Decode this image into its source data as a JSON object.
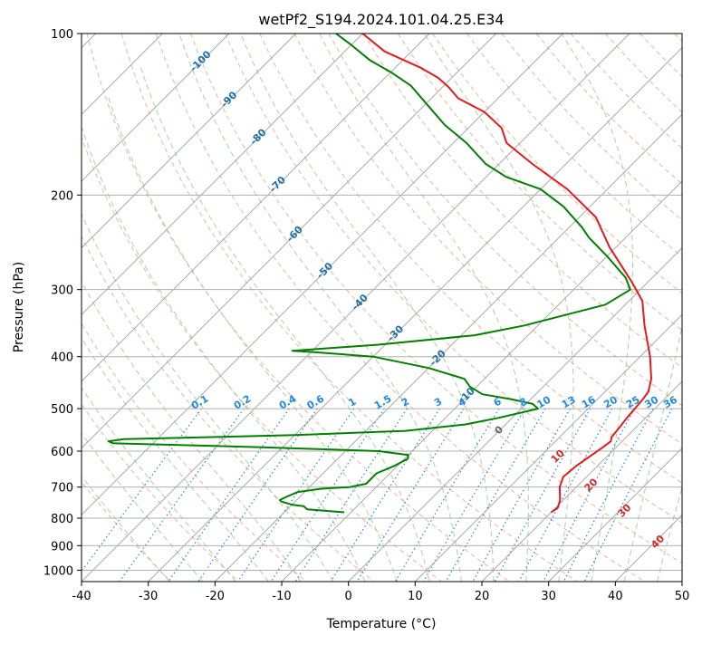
{
  "chart_data": {
    "type": "line",
    "chart_kind": "skew-t log-p diagram",
    "title": "wetPf2_S194.2024.101.04.25.E34",
    "xlabel": "Temperature (°C)",
    "ylabel": "Pressure (hPa)",
    "xlim": [
      -40,
      50
    ],
    "ylim": [
      1050,
      100
    ],
    "y_scale": "log",
    "x_ticks": [
      -40,
      -30,
      -20,
      -10,
      0,
      10,
      20,
      30,
      40,
      50
    ],
    "y_ticks": [
      100,
      200,
      300,
      400,
      500,
      600,
      700,
      800,
      900,
      1000
    ],
    "grid": true,
    "legend": "none",
    "skew_degrees": 45,
    "colors": {
      "temperature": "#e41a1c",
      "dewpoint": "#008000",
      "isotherm_grid": "#a0a0a0",
      "dry_adiabat": "#f4a582",
      "moist_adiabat": "#9ccf9c",
      "mixing_ratio": "#1e88e5",
      "isotherm_label": "#1f6fa8",
      "moist_label": "#d62728",
      "grid": "#b0b0b0"
    },
    "series": [
      {
        "role": "temperature",
        "points": [
          [
            20.0,
            780
          ],
          [
            20.3,
            765
          ],
          [
            19.5,
            740
          ],
          [
            17.5,
            700
          ],
          [
            16.5,
            670
          ],
          [
            16.8,
            640
          ],
          [
            17.5,
            610
          ],
          [
            18.0,
            590
          ],
          [
            18.3,
            575
          ],
          [
            17.8,
            565
          ],
          [
            17.5,
            540
          ],
          [
            17.2,
            520
          ],
          [
            17.0,
            500
          ],
          [
            16.8,
            480
          ],
          [
            16.5,
            465
          ],
          [
            15.0,
            440
          ],
          [
            11.5,
            400
          ],
          [
            6.0,
            350
          ],
          [
            2.0,
            315
          ],
          [
            -2.5,
            290
          ],
          [
            -11.0,
            250
          ],
          [
            -17.5,
            220
          ],
          [
            -26.0,
            195
          ],
          [
            -35.0,
            175
          ],
          [
            -42.0,
            160
          ],
          [
            -45.0,
            150
          ],
          [
            -50.0,
            140
          ],
          [
            -56.0,
            132
          ],
          [
            -59.0,
            126
          ],
          [
            -62.0,
            121
          ],
          [
            -66.0,
            116
          ],
          [
            -74.0,
            108
          ],
          [
            -80.0,
            100
          ]
        ]
      },
      {
        "role": "dewpoint",
        "points": [
          [
            -11.0,
            780
          ],
          [
            -17.0,
            770
          ],
          [
            -18.0,
            760
          ],
          [
            -20.0,
            755
          ],
          [
            -22.0,
            745
          ],
          [
            -22.5,
            740
          ],
          [
            -22.0,
            730
          ],
          [
            -21.0,
            715
          ],
          [
            -18.0,
            705
          ],
          [
            -14.0,
            700
          ],
          [
            -12.0,
            690
          ],
          [
            -12.0,
            660
          ],
          [
            -10.5,
            640
          ],
          [
            -9.5,
            620
          ],
          [
            -10.0,
            610
          ],
          [
            -15.0,
            600
          ],
          [
            -33.0,
            590
          ],
          [
            -56.0,
            580
          ],
          [
            -57.0,
            575
          ],
          [
            -55.0,
            570
          ],
          [
            -30.0,
            560
          ],
          [
            -14.0,
            550
          ],
          [
            -6.0,
            535
          ],
          [
            -2.0,
            520
          ],
          [
            2.5,
            500
          ],
          [
            1.0,
            490
          ],
          [
            -3.0,
            480
          ],
          [
            -8.0,
            470
          ],
          [
            -11.0,
            455
          ],
          [
            -13.0,
            440
          ],
          [
            -20.0,
            420
          ],
          [
            -30.0,
            400
          ],
          [
            -40.0,
            392
          ],
          [
            -43.0,
            390
          ],
          [
            -31.0,
            380
          ],
          [
            -18.0,
            365
          ],
          [
            -12.0,
            350
          ],
          [
            -3.0,
            320
          ],
          [
            -1.5,
            300
          ],
          [
            -4.0,
            285
          ],
          [
            -10.0,
            260
          ],
          [
            -15.5,
            240
          ],
          [
            -18.0,
            230
          ],
          [
            -24.0,
            210
          ],
          [
            -30.0,
            195
          ],
          [
            -37.0,
            185
          ],
          [
            -42.0,
            175
          ],
          [
            -48.0,
            160
          ],
          [
            -54.0,
            148
          ],
          [
            -60.0,
            135
          ],
          [
            -65.0,
            125
          ],
          [
            -70.0,
            118
          ],
          [
            -75.0,
            112
          ],
          [
            -80.0,
            105
          ],
          [
            -84.0,
            100
          ]
        ]
      }
    ],
    "isotherm_labels": [
      "-100",
      "-90",
      "-80",
      "-70",
      "-60",
      "-50",
      "-40",
      "-30",
      "-20",
      "-10",
      "0"
    ],
    "moist_adiabat_labels": [
      "10",
      "20",
      "30",
      "40"
    ],
    "mixing_ratio_labels": [
      "0.1",
      "0.2",
      "0.4",
      "0.6",
      "1",
      "1.5",
      "2",
      "3",
      "4",
      "6",
      "8",
      "10",
      "13",
      "16",
      "20",
      "25",
      "30",
      "36"
    ]
  }
}
